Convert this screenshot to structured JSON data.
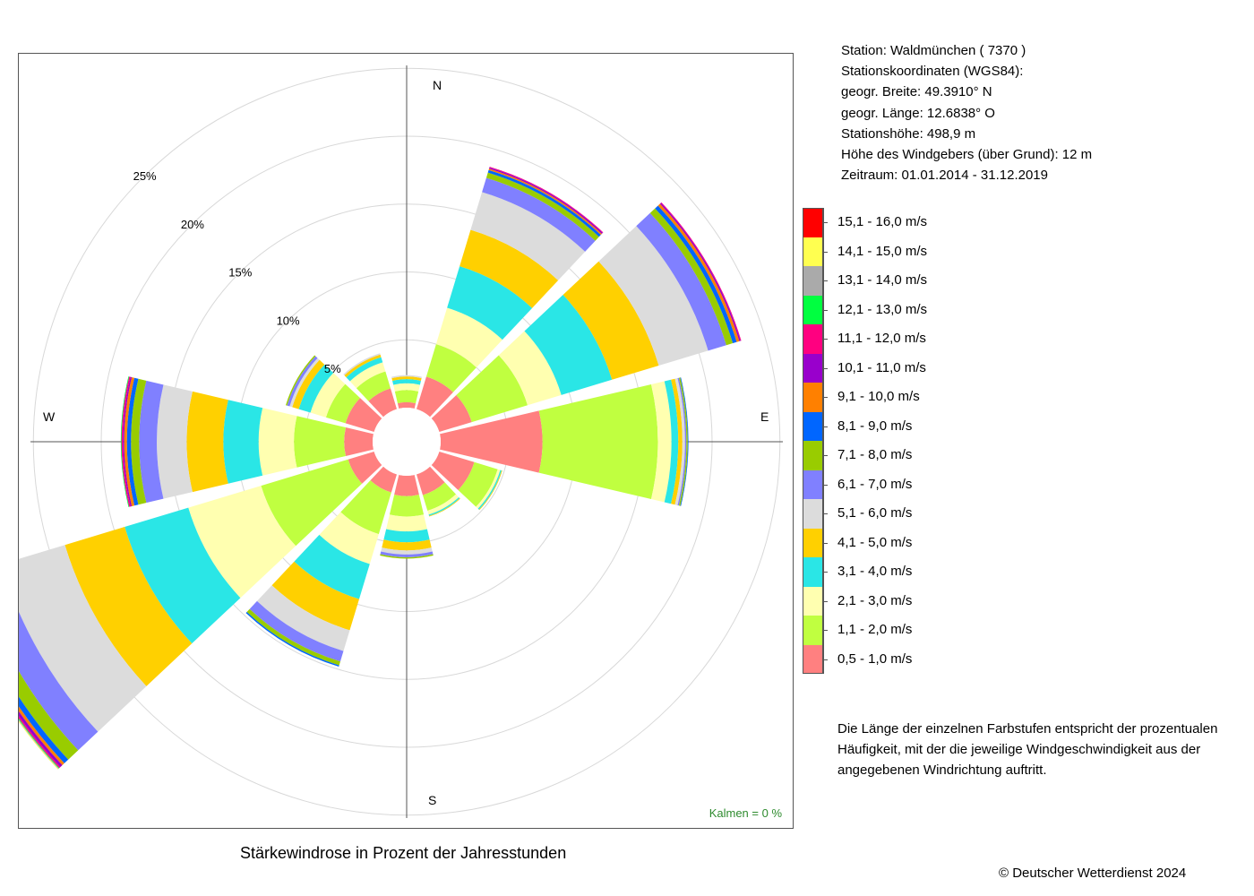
{
  "station": {
    "line1": "Station:  Waldmünchen  ( 7370 )",
    "line2": "Stationskoordinaten (WGS84):",
    "line3": "geogr. Breite: 49.3910° N",
    "line4": "geogr. Länge: 12.6838° O",
    "line5": "Stationshöhe: 498,9 m",
    "line6": "Höhe des Windgebers (über Grund): 12 m",
    "line7": "Zeitraum: 01.01.2014 - 31.12.2019"
  },
  "note": "Die Länge der einzelnen Farbstufen entspricht der prozentualen Häufigkeit, mit der die jeweilige Windgeschwindigkeit aus der angegebenen Windrichtung auftritt.",
  "caption": "Stärkewindrose in Prozent der Jahresstunden",
  "copyright": "© Deutscher Wetterdienst  2024",
  "calm": "Kalmen  =  0 %",
  "chart_data": {
    "type": "windrose",
    "title": "Stärkewindrose in Prozent der Jahresstunden",
    "rings": [
      5,
      10,
      15,
      20,
      25
    ],
    "ring_labels": [
      "5%",
      "10%",
      "15%",
      "20%",
      "25%"
    ],
    "compass_labels": {
      "N": "N",
      "E": "E",
      "S": "S",
      "W": "W"
    },
    "classes": [
      {
        "label": "0,5 - 1,0 m/s",
        "color": "#ff8080"
      },
      {
        "label": "1,1 - 2,0 m/s",
        "color": "#c0ff40"
      },
      {
        "label": "2,1 - 3,0 m/s",
        "color": "#ffffb0"
      },
      {
        "label": "3,1 - 4,0 m/s",
        "color": "#2ae6e6"
      },
      {
        "label": "4,1 - 5,0 m/s",
        "color": "#ffd000"
      },
      {
        "label": "5,1 - 6,0 m/s",
        "color": "#dcdcdc"
      },
      {
        "label": "6,1 - 7,0 m/s",
        "color": "#8080ff"
      },
      {
        "label": "7,1 - 8,0 m/s",
        "color": "#99cc00"
      },
      {
        "label": "8,1 - 9,0 m/s",
        "color": "#0066ff"
      },
      {
        "label": "9,1 - 10,0 m/s",
        "color": "#ff8000"
      },
      {
        "label": "10,1 - 11,0 m/s",
        "color": "#9900cc"
      },
      {
        "label": "11,1 - 12,0 m/s",
        "color": "#ff0080"
      },
      {
        "label": "12,1 - 13,0 m/s",
        "color": "#00ff40"
      },
      {
        "label": "13,1 - 14,0 m/s",
        "color": "#aaaaaa"
      },
      {
        "label": "14,1 - 15,0 m/s",
        "color": "#ffff50"
      },
      {
        "label": "15,1 - 16,0 m/s",
        "color": "#ff0000"
      }
    ],
    "sectors": [
      {
        "direction": 0,
        "values": [
          0.4,
          0.9,
          0.5,
          0.3,
          0.2,
          0.1
        ]
      },
      {
        "direction": 30,
        "values": [
          2.5,
          2.5,
          2.8,
          3.2,
          2.8,
          2.9,
          1.1,
          0.4,
          0.2,
          0.1,
          0.1,
          0.05
        ]
      },
      {
        "direction": 60,
        "values": [
          2.5,
          4.3,
          2.6,
          3.9,
          3.6,
          3.8,
          1.4,
          0.5,
          0.3,
          0.2,
          0.1,
          0.05
        ]
      },
      {
        "direction": 90,
        "values": [
          7.5,
          8.5,
          1.0,
          0.5,
          0.3,
          0.2,
          0.1,
          0.1,
          0.05
        ]
      },
      {
        "direction": 120,
        "values": [
          2.7,
          1.8,
          0.2,
          0.1,
          0.05
        ]
      },
      {
        "direction": 150,
        "values": [
          1.6,
          1.2,
          0.3,
          0.1,
          0.05
        ]
      },
      {
        "direction": 180,
        "values": [
          1.5,
          1.5,
          1.1,
          0.8,
          0.6,
          0.3,
          0.2,
          0.1
        ]
      },
      {
        "direction": 210,
        "values": [
          1.4,
          3.2,
          2.3,
          2.7,
          2.4,
          1.6,
          0.8,
          0.3,
          0.1
        ]
      },
      {
        "direction": 240,
        "values": [
          2.0,
          6.7,
          5.6,
          4.9,
          4.6,
          4.9,
          2.0,
          1.0,
          0.4,
          0.2,
          0.2,
          0.1,
          0.05,
          0.05,
          0.05
        ]
      },
      {
        "direction": 270,
        "values": [
          2.1,
          3.7,
          2.6,
          2.6,
          2.7,
          2.2,
          1.3,
          0.6,
          0.3,
          0.2,
          0.1,
          0.1,
          0.05
        ]
      },
      {
        "direction": 300,
        "values": [
          2.2,
          1.5,
          1.2,
          0.9,
          0.5,
          0.2,
          0.2,
          0.1
        ]
      },
      {
        "direction": 330,
        "values": [
          1.6,
          1.3,
          0.7,
          0.4,
          0.2,
          0.1
        ]
      }
    ]
  }
}
